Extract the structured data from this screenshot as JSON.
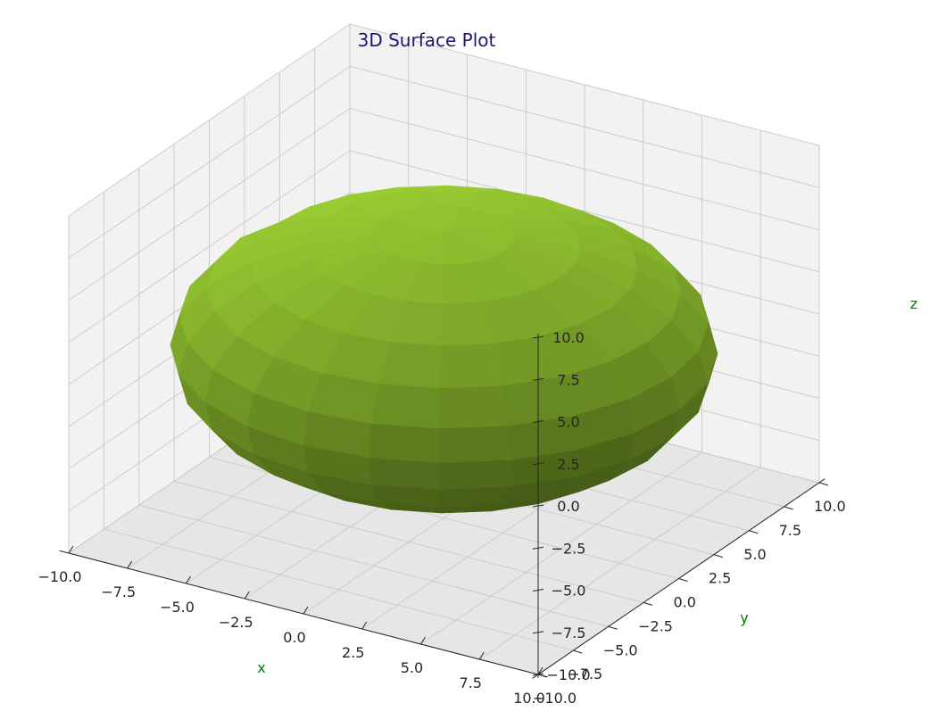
{
  "chart_data": {
    "type": "surface3d",
    "title": "3D Surface Plot",
    "xlabel": "x",
    "ylabel": "y",
    "zlabel": "z",
    "xlim": [
      -10,
      10
    ],
    "ylim": [
      -10,
      10
    ],
    "zlim": [
      -10,
      10
    ],
    "xticks": [
      "−10.0",
      "−7.5",
      "−5.0",
      "−2.5",
      "0.0",
      "2.5",
      "5.0",
      "7.5",
      "10.0"
    ],
    "yticks": [
      "−10.0",
      "−7.5",
      "−5.0",
      "−2.5",
      "0.0",
      "2.5",
      "5.0",
      "7.5",
      "10.0"
    ],
    "zticks": [
      "−10.0",
      "−7.5",
      "−5.0",
      "−2.5",
      "0.0",
      "2.5",
      "5.0",
      "7.5",
      "10.0"
    ],
    "surface": {
      "shape": "ellipsoid",
      "center": [
        0,
        0,
        0
      ],
      "radii": [
        10,
        10,
        7
      ],
      "color": "#9ACD32",
      "grid": "lat-lon"
    },
    "grid": true,
    "colors": {
      "title": "#191970",
      "axis_label": "#008000",
      "pane_light": "#f2f2f2",
      "pane_dark": "#e6e6e6",
      "gridline": "#cccccc"
    }
  }
}
